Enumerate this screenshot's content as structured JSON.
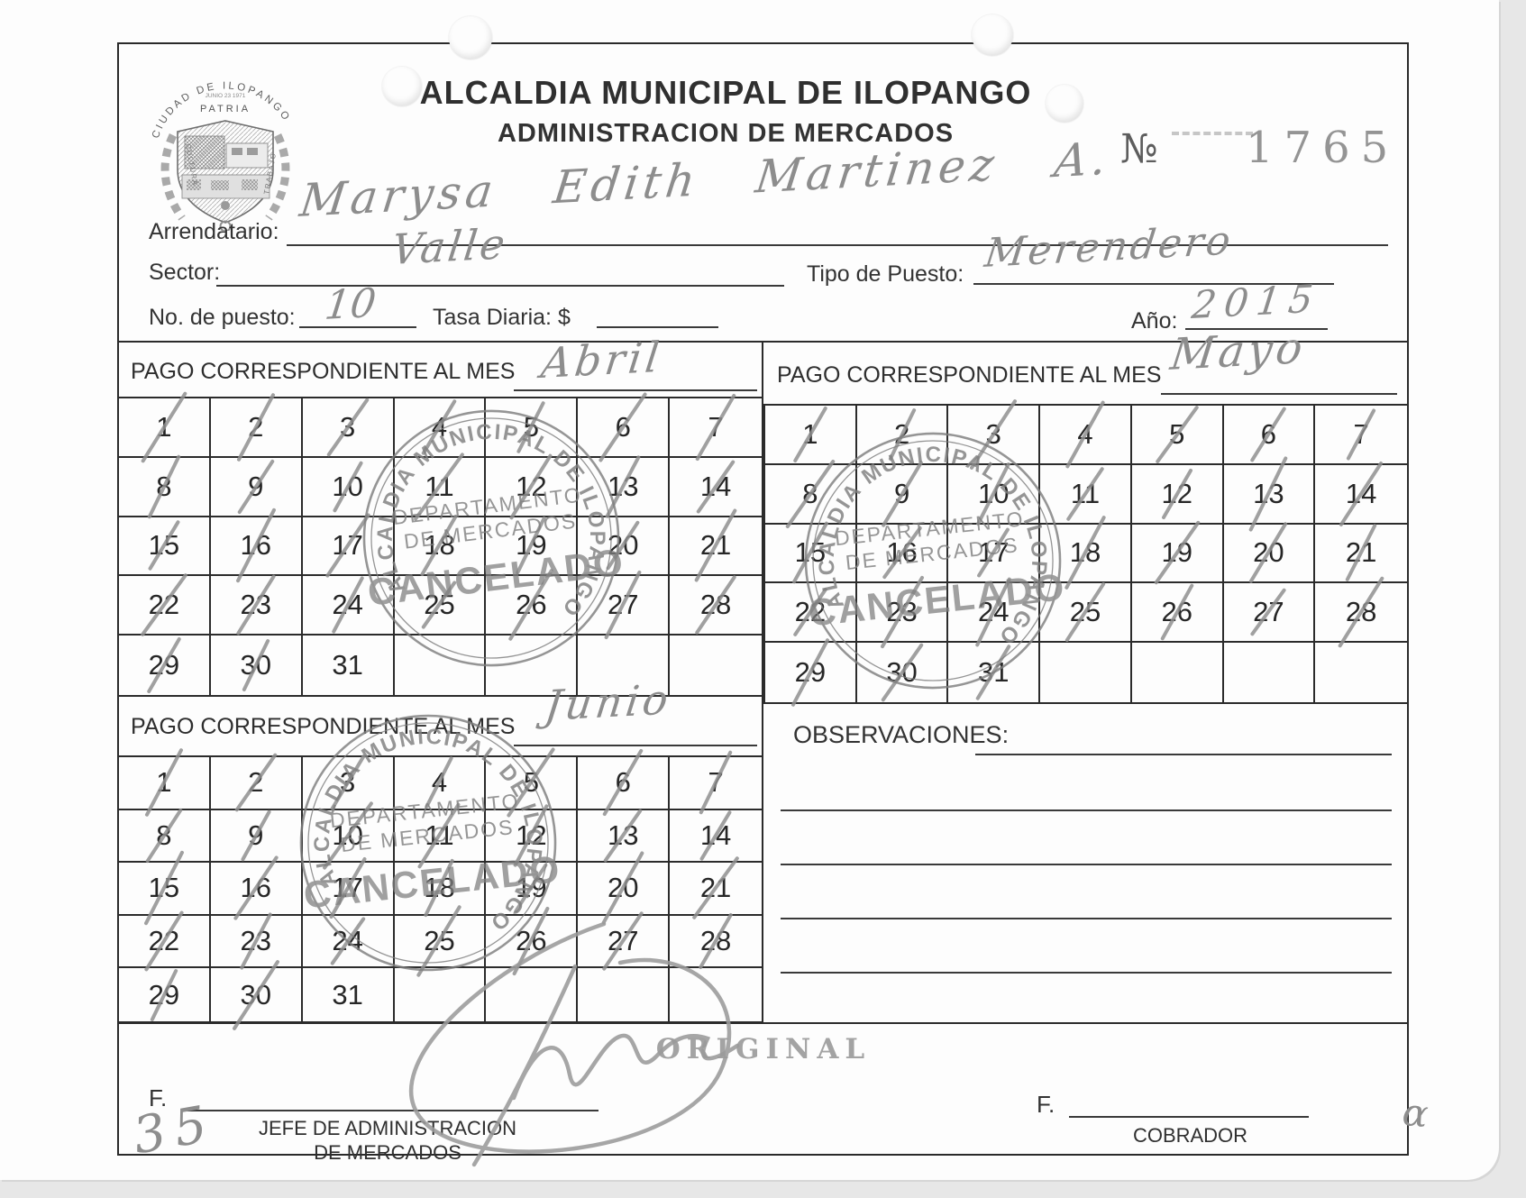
{
  "page_meta": {
    "form_number_sign": "№",
    "form_number": "1765"
  },
  "header": {
    "title_line1": "ALCALDIA MUNICIPAL DE ILOPANGO",
    "title_line2": "ADMINISTRACION DE MERCADOS"
  },
  "logo": {
    "arc_text": "CIUDAD DE ILOPANGO",
    "date_text": "JUNIO 23 1971",
    "motto": "PATRIA",
    "left_word": "CULTURA",
    "right_word": "TRABAJO"
  },
  "fields": {
    "arrendatario_label": "Arrendatario:",
    "arrendatario_value": "Marysa Edith Martinez A.",
    "sector_label": "Sector:",
    "sector_value": "Valle",
    "tipo_puesto_label": "Tipo de Puesto:",
    "tipo_puesto_value": "Merendero",
    "no_puesto_label": "No. de puesto:",
    "no_puesto_value": "10",
    "tasa_diaria_label": "Tasa Diaria: $",
    "tasa_diaria_value": "",
    "anio_label": "Año:",
    "anio_value": "2015"
  },
  "calendars": [
    {
      "header_label": "PAGO CORRESPONDIENTE AL MES",
      "month_handwritten": "Abril",
      "crossed_days": [
        1,
        2,
        3,
        4,
        5,
        6,
        7,
        8,
        9,
        10,
        11,
        12,
        13,
        14,
        15,
        16,
        17,
        18,
        19,
        20,
        21,
        22,
        23,
        24,
        25,
        26,
        27,
        28,
        29,
        30
      ]
    },
    {
      "header_label": "PAGO CORRESPONDIENTE AL MES",
      "month_handwritten": "Mayo",
      "crossed_days": [
        1,
        2,
        3,
        4,
        5,
        6,
        7,
        8,
        9,
        10,
        11,
        12,
        13,
        14,
        15,
        16,
        17,
        18,
        19,
        20,
        21,
        22,
        23,
        24,
        25,
        26,
        27,
        28,
        29,
        30,
        31
      ]
    },
    {
      "header_label": "PAGO CORRESPONDIENTE AL MES",
      "month_handwritten": "Junio",
      "crossed_days": [
        1,
        2,
        3,
        4,
        5,
        6,
        7,
        8,
        9,
        10,
        11,
        12,
        13,
        14,
        15,
        16,
        17,
        18,
        19,
        20,
        21,
        22,
        23,
        24,
        25,
        26,
        27,
        28,
        29,
        30
      ]
    }
  ],
  "stamp": {
    "ring_text": "ALCALDIA MUNICIPAL DE ILOPANGO",
    "dept_line1": "DEPARTAMENTO",
    "dept_line2": "DE MERCADOS",
    "cancel_text": "CANCELADO"
  },
  "observaciones": {
    "label": "OBSERVACIONES:",
    "blank_line_count": 4
  },
  "footer": {
    "original_stamp": "ORIGINAL",
    "left_f_label": "F.",
    "left_role_line1": "JEFE DE ADMINISTRACION",
    "left_role_line2": "DE MERCADOS",
    "right_f_label": "F.",
    "right_role": "COBRADOR",
    "handwritten_number": "35",
    "handwritten_mark": "α"
  },
  "colors": {
    "ink": "#2b2b2b",
    "pencil": "#8f8f8f",
    "stamp_ink": "#7f7f7f",
    "serial_gray": "#949494"
  }
}
